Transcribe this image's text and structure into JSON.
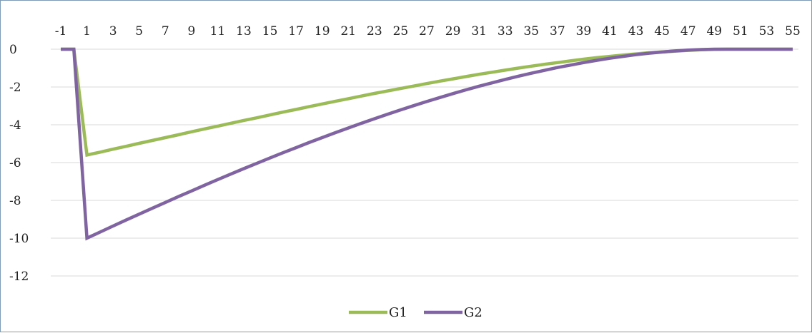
{
  "chart_data": {
    "type": "line",
    "x": [
      -1,
      0,
      1,
      2,
      3,
      4,
      5,
      6,
      7,
      8,
      9,
      10,
      11,
      12,
      13,
      14,
      15,
      16,
      17,
      18,
      19,
      20,
      21,
      22,
      23,
      24,
      25,
      26,
      27,
      28,
      29,
      30,
      31,
      32,
      33,
      34,
      35,
      36,
      37,
      38,
      39,
      40,
      41,
      42,
      43,
      44,
      45,
      46,
      47,
      48,
      49,
      50,
      51,
      52,
      53,
      54,
      55
    ],
    "xticks": [
      "-1",
      "1",
      "3",
      "5",
      "7",
      "9",
      "11",
      "13",
      "15",
      "17",
      "19",
      "21",
      "23",
      "25",
      "27",
      "29",
      "31",
      "33",
      "35",
      "37",
      "39",
      "41",
      "43",
      "45",
      "47",
      "49",
      "51",
      "53",
      "55"
    ],
    "yticks": [
      "0",
      "-2",
      "-4",
      "-6",
      "-8",
      "-10",
      "-12"
    ],
    "ylim": [
      -14,
      0
    ],
    "xlim": [
      -1,
      55
    ],
    "grid": true,
    "legend_position": "bottom",
    "series": [
      {
        "name": "G1",
        "color": "#9bbb59",
        "values": [
          0,
          0,
          -5.6,
          -5.45,
          -5.29,
          -5.14,
          -4.98,
          -4.83,
          -4.68,
          -4.53,
          -4.37,
          -4.22,
          -4.07,
          -3.92,
          -3.77,
          -3.63,
          -3.48,
          -3.33,
          -3.19,
          -3.04,
          -2.9,
          -2.76,
          -2.62,
          -2.48,
          -2.34,
          -2.21,
          -2.08,
          -1.95,
          -1.82,
          -1.69,
          -1.57,
          -1.45,
          -1.33,
          -1.22,
          -1.11,
          -1.0,
          -0.9,
          -0.8,
          -0.71,
          -0.62,
          -0.53,
          -0.45,
          -0.38,
          -0.31,
          -0.25,
          -0.19,
          -0.14,
          -0.1,
          -0.06,
          -0.03,
          -0.01,
          0,
          0,
          0,
          0,
          0,
          0
        ]
      },
      {
        "name": "G2",
        "color": "#8064a2",
        "values": [
          0,
          0,
          -10.0,
          -9.68,
          -9.36,
          -9.04,
          -8.73,
          -8.42,
          -8.11,
          -7.8,
          -7.5,
          -7.2,
          -6.9,
          -6.61,
          -6.32,
          -6.04,
          -5.76,
          -5.48,
          -5.21,
          -4.94,
          -4.68,
          -4.42,
          -4.17,
          -3.92,
          -3.68,
          -3.44,
          -3.21,
          -2.99,
          -2.77,
          -2.56,
          -2.35,
          -2.15,
          -1.96,
          -1.78,
          -1.6,
          -1.43,
          -1.27,
          -1.12,
          -0.97,
          -0.84,
          -0.71,
          -0.59,
          -0.48,
          -0.38,
          -0.29,
          -0.21,
          -0.15,
          -0.09,
          -0.05,
          -0.02,
          0,
          0,
          0,
          0,
          0,
          0,
          0
        ]
      }
    ]
  }
}
